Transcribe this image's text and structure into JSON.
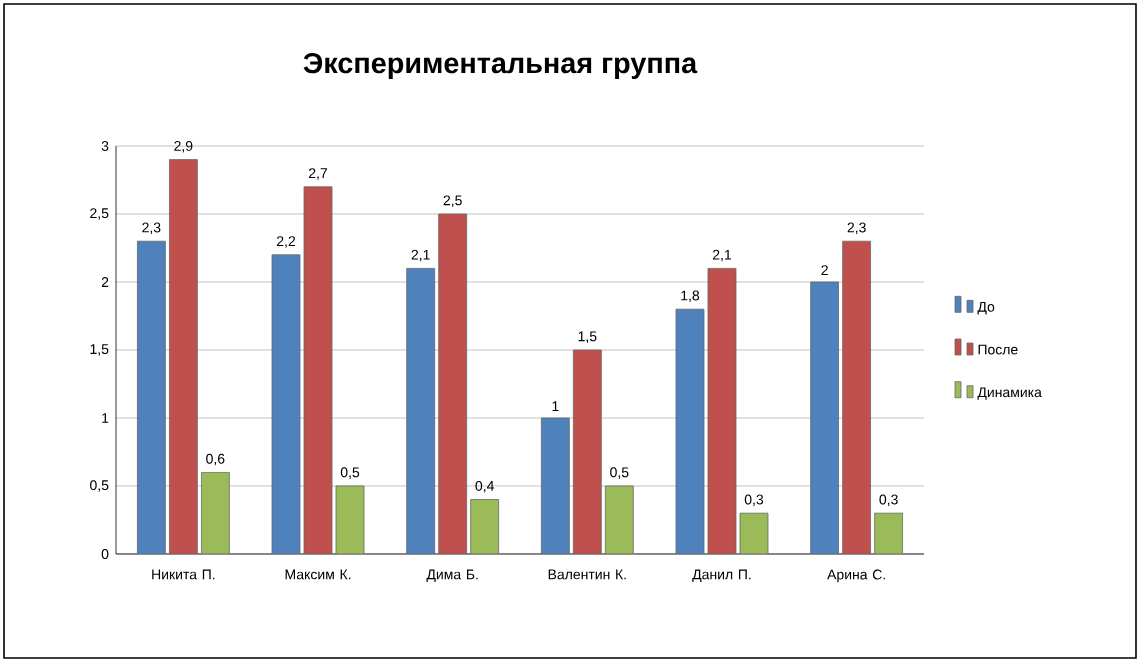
{
  "chart_data": {
    "type": "bar",
    "title": "Экспериментальная группа",
    "categories": [
      "Никита П.",
      "Максим К.",
      "Дима Б.",
      "Валентин К.",
      "Данил П.",
      "Арина С."
    ],
    "series": [
      {
        "name": "До",
        "color": "#4f81bd",
        "values": [
          2.3,
          2.2,
          2.1,
          1,
          1.8,
          2
        ],
        "value_labels": [
          "2,3",
          "2,2",
          "2,1",
          "1",
          "1,8",
          "2"
        ]
      },
      {
        "name": "После",
        "color": "#c0504d",
        "values": [
          2.9,
          2.7,
          2.5,
          1.5,
          2.1,
          2.3
        ],
        "value_labels": [
          "2,9",
          "2,7",
          "2,5",
          "1,5",
          "2,1",
          "2,3"
        ]
      },
      {
        "name": "Динамика",
        "color": "#9bbb59",
        "values": [
          0.6,
          0.5,
          0.4,
          0.5,
          0.3,
          0.3
        ],
        "value_labels": [
          "0,6",
          "0,5",
          "0,4",
          "0,5",
          "0,3",
          "0,3"
        ]
      }
    ],
    "ylim": [
      0,
      3
    ],
    "yticks": [
      0,
      {
        "value": 0.5,
        "label": "0,5"
      },
      1,
      {
        "value": 1.5,
        "label": "1,5"
      },
      2,
      {
        "value": 2.5,
        "label": "2,5"
      },
      3
    ],
    "grid": "y",
    "legend": "right"
  }
}
